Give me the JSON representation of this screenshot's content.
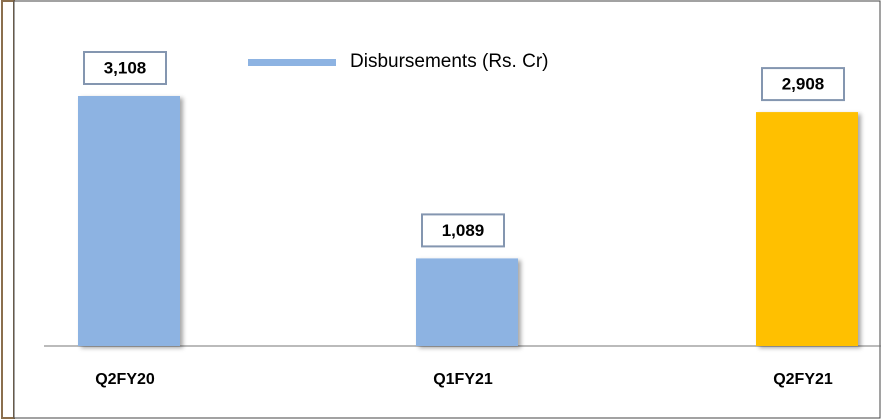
{
  "chart_data": {
    "type": "bar",
    "categories": [
      "Q2FY20",
      "Q1FY21",
      "Q2FY21"
    ],
    "series": [
      {
        "name": "Disbursements (Rs. Cr)",
        "color": "#8db3e2",
        "colors": [
          "#8db3e2",
          "#8db3e2",
          "#ffc000"
        ],
        "values": [
          3108,
          1089,
          2908
        ],
        "value_labels": [
          "3,108",
          "1,089",
          "2,908"
        ]
      }
    ]
  }
}
